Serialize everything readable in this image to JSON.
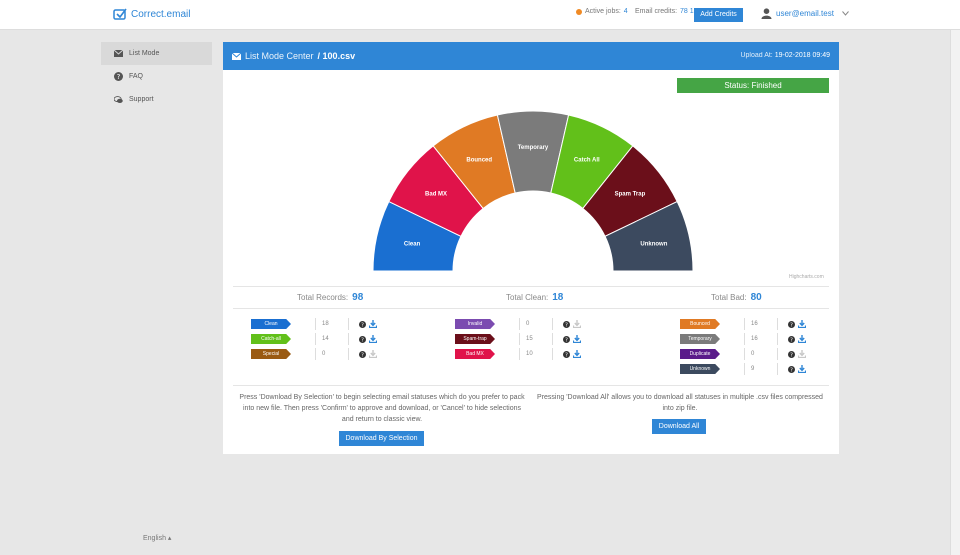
{
  "app": {
    "logo_text": "Correct.email"
  },
  "topbar": {
    "active_jobs_label": "Active jobs:",
    "active_jobs_value": "4",
    "credits_label": "Email credits:",
    "credits_value": "78 134",
    "add_credits_label": "Add Credits",
    "user_email": "user@email.test"
  },
  "sidebar": {
    "items": [
      {
        "label": "List Mode",
        "icon": "envelope-icon"
      },
      {
        "label": "FAQ",
        "icon": "question-icon"
      },
      {
        "label": "Support",
        "icon": "chat-icon"
      }
    ],
    "language": "English"
  },
  "panel": {
    "title_prefix": "List Mode Center",
    "title_file": "/ 100.csv",
    "upload_label": "Upload At:",
    "upload_value": "19-02-2018 09:49",
    "status": "Status: Finished",
    "chart_credit": "Highcharts.com"
  },
  "chart_data": {
    "type": "pie",
    "subtype": "semi-donut",
    "slices": [
      {
        "label": "Clean",
        "color": "#1a6fd1"
      },
      {
        "label": "Bad MX",
        "color": "#e0134a"
      },
      {
        "label": "Bounced",
        "color": "#e07a24"
      },
      {
        "label": "Temporary",
        "color": "#7b7b7b"
      },
      {
        "label": "Catch All",
        "color": "#62c01a"
      },
      {
        "label": "Spam Trap",
        "color": "#6b0f1a"
      },
      {
        "label": "Unknown",
        "color": "#3c4a5f"
      }
    ]
  },
  "totals": {
    "records_label": "Total Records:",
    "records_value": "98",
    "clean_label": "Total Clean:",
    "clean_value": "18",
    "bad_label": "Total Bad:",
    "bad_value": "80"
  },
  "status_columns": [
    [
      {
        "label": "Clean",
        "count": "18",
        "color": "#1a6fd1",
        "download": true
      },
      {
        "label": "Catch-all",
        "count": "14",
        "color": "#62c01a",
        "download": true
      },
      {
        "label": "Special",
        "count": "0",
        "color": "#9a5a12",
        "download": false
      }
    ],
    [
      {
        "label": "Invalid",
        "count": "0",
        "color": "#7b4bb0",
        "download": false
      },
      {
        "label": "Spam-trap",
        "count": "15",
        "color": "#6b0f1a",
        "download": true
      },
      {
        "label": "Bad MX",
        "count": "10",
        "color": "#e0134a",
        "download": true
      }
    ],
    [
      {
        "label": "Bounced",
        "count": "16",
        "color": "#e07a24",
        "download": true
      },
      {
        "label": "Temporary",
        "count": "16",
        "color": "#7b7b7b",
        "download": true
      },
      {
        "label": "Duplicate",
        "count": "0",
        "color": "#5a1b8a",
        "download": false
      },
      {
        "label": "Unknown",
        "count": "9",
        "color": "#3c4a5f",
        "download": true
      }
    ]
  ],
  "footer": {
    "selection_text": "Press 'Download By Selection' to begin selecting email statuses which do you prefer to pack into new file. Then press 'Confirm' to approve and download, or 'Cancel' to hide selections and return to classic view.",
    "selection_button": "Download By Selection",
    "all_text": "Pressing 'Download All' allows you to download all statuses in multiple .csv files compressed into zip file.",
    "all_button": "Download All"
  }
}
